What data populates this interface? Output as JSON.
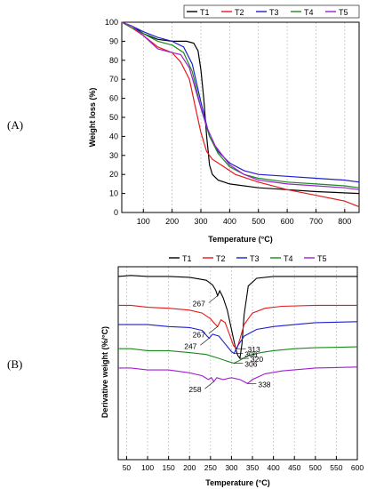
{
  "panels": {
    "a_label": "(A)",
    "b_label": "(B)"
  },
  "chart_data": [
    {
      "panel": "(A)",
      "type": "line",
      "xlabel": "Temperature (°C)",
      "ylabel": "Weight loss (%)",
      "xlim": [
        25,
        850
      ],
      "ylim": [
        0,
        100
      ],
      "xticks": [
        100,
        200,
        300,
        400,
        500,
        600,
        700,
        800
      ],
      "yticks": [
        0,
        10,
        20,
        30,
        40,
        50,
        60,
        70,
        80,
        90,
        100
      ],
      "grid": "vertical dashed",
      "legend_position": "top-right",
      "series": [
        {
          "name": "T1",
          "color": "#000000",
          "x": [
            25,
            60,
            100,
            150,
            200,
            250,
            275,
            290,
            300,
            310,
            320,
            330,
            340,
            360,
            400,
            500,
            600,
            700,
            850
          ],
          "y": [
            100,
            98,
            94,
            91,
            90,
            90,
            89,
            85,
            75,
            60,
            40,
            25,
            20,
            17,
            15,
            13,
            12,
            11,
            10
          ]
        },
        {
          "name": "T2",
          "color": "#e41a1c",
          "x": [
            25,
            60,
            100,
            150,
            200,
            230,
            260,
            280,
            300,
            320,
            340,
            380,
            420,
            500,
            600,
            700,
            800,
            850
          ],
          "y": [
            100,
            97,
            93,
            87,
            84,
            79,
            70,
            56,
            42,
            32,
            28,
            24,
            20,
            16,
            12,
            9,
            6,
            3
          ]
        },
        {
          "name": "T3",
          "color": "#1f1fd0",
          "x": [
            25,
            60,
            100,
            150,
            200,
            240,
            270,
            300,
            330,
            360,
            400,
            450,
            500,
            600,
            700,
            800,
            850
          ],
          "y": [
            100,
            98,
            95,
            92,
            90,
            87,
            78,
            58,
            40,
            32,
            26,
            22,
            20,
            19,
            18,
            17,
            16
          ]
        },
        {
          "name": "T4",
          "color": "#1a8a1a",
          "x": [
            25,
            60,
            100,
            150,
            200,
            240,
            270,
            300,
            330,
            360,
            400,
            450,
            500,
            600,
            700,
            800,
            850
          ],
          "y": [
            100,
            97,
            94,
            90,
            88,
            84,
            74,
            55,
            40,
            31,
            24,
            20,
            18,
            16,
            15,
            14,
            13
          ]
        },
        {
          "name": "T5",
          "color": "#a01fd0",
          "x": [
            25,
            60,
            100,
            150,
            200,
            230,
            260,
            290,
            320,
            350,
            400,
            450,
            500,
            600,
            700,
            800,
            850
          ],
          "y": [
            100,
            98,
            93,
            86,
            84,
            83,
            76,
            60,
            45,
            35,
            25,
            20,
            17,
            15,
            14,
            13,
            12
          ]
        }
      ]
    },
    {
      "panel": "(B)",
      "type": "line",
      "xlabel": "Temperature (°C)",
      "ylabel": "Derivative weight (%/°C)",
      "xlim": [
        30,
        600
      ],
      "xticks": [
        50,
        100,
        150,
        200,
        250,
        300,
        350,
        400,
        450,
        500,
        550,
        600
      ],
      "grid": "vertical dashed",
      "legend_position": "top",
      "series": [
        {
          "name": "T1",
          "color": "#000000",
          "baseline": 0.9,
          "x": [
            30,
            60,
            100,
            150,
            200,
            240,
            255,
            262,
            267,
            272,
            280,
            290,
            300,
            310,
            315,
            320,
            325,
            330,
            340,
            360,
            400,
            450,
            500,
            600
          ],
          "y": [
            0,
            0.01,
            0,
            0,
            -0.01,
            -0.04,
            -0.09,
            -0.14,
            -0.2,
            -0.15,
            -0.22,
            -0.35,
            -0.55,
            -0.75,
            -0.82,
            -0.85,
            -0.7,
            -0.4,
            -0.1,
            -0.02,
            0,
            0,
            0,
            0
          ]
        },
        {
          "name": "T2",
          "color": "#e41a1c",
          "baseline": 0.6,
          "x": [
            30,
            60,
            100,
            150,
            200,
            230,
            250,
            262,
            267,
            275,
            285,
            295,
            305,
            313,
            320,
            330,
            350,
            380,
            420,
            500,
            600
          ],
          "y": [
            0,
            0,
            -0.02,
            -0.03,
            -0.05,
            -0.08,
            -0.14,
            -0.2,
            -0.22,
            -0.15,
            -0.18,
            -0.3,
            -0.42,
            -0.45,
            -0.35,
            -0.2,
            -0.08,
            -0.03,
            -0.01,
            0,
            0
          ]
        },
        {
          "name": "T3",
          "color": "#1f1fd0",
          "baseline": 0.4,
          "x": [
            30,
            60,
            100,
            150,
            200,
            230,
            242,
            247,
            255,
            270,
            285,
            300,
            306,
            315,
            330,
            360,
            400,
            450,
            500,
            600
          ],
          "y": [
            0,
            0,
            0,
            -0.02,
            -0.03,
            -0.06,
            -0.12,
            -0.14,
            -0.1,
            -0.12,
            -0.2,
            -0.28,
            -0.3,
            -0.22,
            -0.12,
            -0.05,
            -0.02,
            0,
            0.02,
            0.03
          ]
        },
        {
          "name": "T4",
          "color": "#1a8a1a",
          "baseline": 0.15,
          "x": [
            30,
            60,
            100,
            150,
            200,
            240,
            270,
            290,
            306,
            320,
            340,
            370,
            400,
            450,
            500,
            600
          ],
          "y": [
            0,
            0,
            -0.02,
            -0.02,
            -0.04,
            -0.06,
            -0.1,
            -0.13,
            -0.15,
            -0.12,
            -0.07,
            -0.04,
            -0.02,
            0,
            0.01,
            0.02
          ]
        },
        {
          "name": "T5",
          "color": "#a01fd0",
          "baseline": -0.05,
          "x": [
            30,
            60,
            100,
            150,
            200,
            230,
            245,
            252,
            258,
            265,
            280,
            300,
            320,
            338,
            350,
            380,
            420,
            500,
            600
          ],
          "y": [
            0,
            0,
            -0.02,
            -0.02,
            -0.05,
            -0.08,
            -0.12,
            -0.1,
            -0.14,
            -0.1,
            -0.12,
            -0.1,
            -0.12,
            -0.16,
            -0.12,
            -0.06,
            -0.03,
            0,
            0.01
          ]
        }
      ],
      "annotations": [
        {
          "text": "267",
          "series": "T1",
          "x": 267
        },
        {
          "text": "320",
          "series": "T1",
          "x": 320
        },
        {
          "text": "267",
          "series": "T2",
          "x": 267
        },
        {
          "text": "313",
          "series": "T2",
          "x": 313
        },
        {
          "text": "247",
          "series": "T3",
          "x": 247
        },
        {
          "text": "306",
          "series": "T3",
          "x": 306
        },
        {
          "text": "306",
          "series": "T4",
          "x": 306
        },
        {
          "text": "258",
          "series": "T5",
          "x": 258
        },
        {
          "text": "338",
          "series": "T5",
          "x": 338
        }
      ]
    }
  ]
}
